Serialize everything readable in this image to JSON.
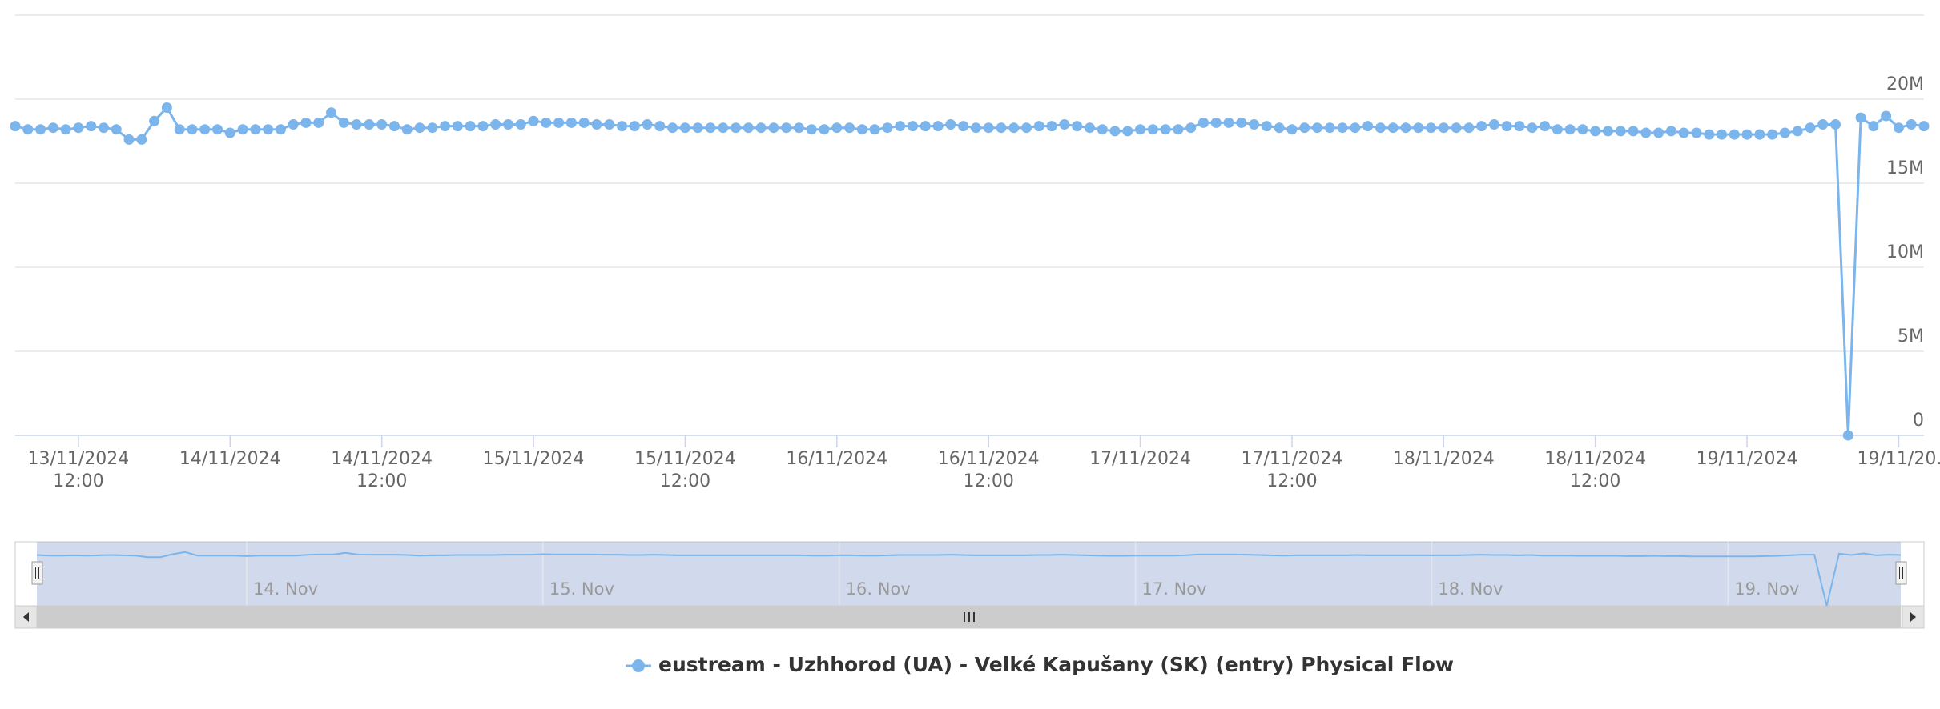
{
  "chart_data": {
    "type": "line",
    "x": [
      "2024-11-13 07:00",
      "2024-11-13 08:00",
      "2024-11-13 09:00",
      "2024-11-13 10:00",
      "2024-11-13 11:00",
      "2024-11-13 12:00",
      "2024-11-13 13:00",
      "2024-11-13 14:00",
      "2024-11-13 15:00",
      "2024-11-13 16:00",
      "2024-11-13 17:00",
      "2024-11-13 18:00",
      "2024-11-13 19:00",
      "2024-11-13 20:00",
      "2024-11-13 21:00",
      "2024-11-13 22:00",
      "2024-11-13 23:00",
      "2024-11-14 00:00",
      "2024-11-14 01:00",
      "2024-11-14 02:00",
      "2024-11-14 03:00",
      "2024-11-14 04:00",
      "2024-11-14 05:00",
      "2024-11-14 06:00",
      "2024-11-14 07:00",
      "2024-11-14 08:00",
      "2024-11-14 09:00",
      "2024-11-14 10:00",
      "2024-11-14 11:00",
      "2024-11-14 12:00",
      "2024-11-14 13:00",
      "2024-11-14 14:00",
      "2024-11-14 15:00",
      "2024-11-14 16:00",
      "2024-11-14 17:00",
      "2024-11-14 18:00",
      "2024-11-14 19:00",
      "2024-11-14 20:00",
      "2024-11-14 21:00",
      "2024-11-14 22:00",
      "2024-11-14 23:00",
      "2024-11-15 00:00",
      "2024-11-15 01:00",
      "2024-11-15 02:00",
      "2024-11-15 03:00",
      "2024-11-15 04:00",
      "2024-11-15 05:00",
      "2024-11-15 06:00",
      "2024-11-15 07:00",
      "2024-11-15 08:00",
      "2024-11-15 09:00",
      "2024-11-15 10:00",
      "2024-11-15 11:00",
      "2024-11-15 12:00",
      "2024-11-15 13:00",
      "2024-11-15 14:00",
      "2024-11-15 15:00",
      "2024-11-15 16:00",
      "2024-11-15 17:00",
      "2024-11-15 18:00",
      "2024-11-15 19:00",
      "2024-11-15 20:00",
      "2024-11-15 21:00",
      "2024-11-15 22:00",
      "2024-11-15 23:00",
      "2024-11-16 00:00",
      "2024-11-16 01:00",
      "2024-11-16 02:00",
      "2024-11-16 03:00",
      "2024-11-16 04:00",
      "2024-11-16 05:00",
      "2024-11-16 06:00",
      "2024-11-16 07:00",
      "2024-11-16 08:00",
      "2024-11-16 09:00",
      "2024-11-16 10:00",
      "2024-11-16 11:00",
      "2024-11-16 12:00",
      "2024-11-16 13:00",
      "2024-11-16 14:00",
      "2024-11-16 15:00",
      "2024-11-16 16:00",
      "2024-11-16 17:00",
      "2024-11-16 18:00",
      "2024-11-16 19:00",
      "2024-11-16 20:00",
      "2024-11-16 21:00",
      "2024-11-16 22:00",
      "2024-11-16 23:00",
      "2024-11-17 00:00",
      "2024-11-17 01:00",
      "2024-11-17 02:00",
      "2024-11-17 03:00",
      "2024-11-17 04:00",
      "2024-11-17 05:00",
      "2024-11-17 06:00",
      "2024-11-17 07:00",
      "2024-11-17 08:00",
      "2024-11-17 09:00",
      "2024-11-17 10:00",
      "2024-11-17 11:00",
      "2024-11-17 12:00",
      "2024-11-17 13:00",
      "2024-11-17 14:00",
      "2024-11-17 15:00",
      "2024-11-17 16:00",
      "2024-11-17 17:00",
      "2024-11-17 18:00",
      "2024-11-17 19:00",
      "2024-11-17 20:00",
      "2024-11-17 21:00",
      "2024-11-17 22:00",
      "2024-11-17 23:00",
      "2024-11-18 00:00",
      "2024-11-18 01:00",
      "2024-11-18 02:00",
      "2024-11-18 03:00",
      "2024-11-18 04:00",
      "2024-11-18 05:00",
      "2024-11-18 06:00",
      "2024-11-18 07:00",
      "2024-11-18 08:00",
      "2024-11-18 09:00",
      "2024-11-18 10:00",
      "2024-11-18 11:00",
      "2024-11-18 12:00",
      "2024-11-18 13:00",
      "2024-11-18 14:00",
      "2024-11-18 15:00",
      "2024-11-18 16:00",
      "2024-11-18 17:00",
      "2024-11-18 18:00",
      "2024-11-18 19:00",
      "2024-11-18 20:00",
      "2024-11-18 21:00",
      "2024-11-18 22:00",
      "2024-11-18 23:00",
      "2024-11-19 00:00",
      "2024-11-19 01:00",
      "2024-11-19 02:00",
      "2024-11-19 03:00",
      "2024-11-19 04:00",
      "2024-11-19 05:00",
      "2024-11-19 06:00",
      "2024-11-19 07:00",
      "2024-11-19 08:00",
      "2024-11-19 09:00",
      "2024-11-19 10:00",
      "2024-11-19 11:00",
      "2024-11-19 12:00",
      "2024-11-19 13:00",
      "2024-11-19 14:00"
    ],
    "series": [
      {
        "name": "eustream - Uzhhorod (UA) - Velké Kapušany (SK) (entry) Physical Flow",
        "color": "#7cb5ec",
        "values": [
          18400000,
          18200000,
          18200000,
          18300000,
          18200000,
          18300000,
          18400000,
          18300000,
          18200000,
          17600000,
          17600000,
          18700000,
          19500000,
          18200000,
          18200000,
          18200000,
          18200000,
          18000000,
          18200000,
          18200000,
          18200000,
          18200000,
          18500000,
          18600000,
          18600000,
          19200000,
          18600000,
          18500000,
          18500000,
          18500000,
          18400000,
          18200000,
          18300000,
          18300000,
          18400000,
          18400000,
          18400000,
          18400000,
          18500000,
          18500000,
          18500000,
          18700000,
          18600000,
          18600000,
          18600000,
          18600000,
          18500000,
          18500000,
          18400000,
          18400000,
          18500000,
          18400000,
          18300000,
          18300000,
          18300000,
          18300000,
          18300000,
          18300000,
          18300000,
          18300000,
          18300000,
          18300000,
          18300000,
          18200000,
          18200000,
          18300000,
          18300000,
          18200000,
          18200000,
          18300000,
          18400000,
          18400000,
          18400000,
          18400000,
          18500000,
          18400000,
          18300000,
          18300000,
          18300000,
          18300000,
          18300000,
          18400000,
          18400000,
          18500000,
          18400000,
          18300000,
          18200000,
          18100000,
          18100000,
          18200000,
          18200000,
          18200000,
          18200000,
          18300000,
          18600000,
          18600000,
          18600000,
          18600000,
          18500000,
          18400000,
          18300000,
          18200000,
          18300000,
          18300000,
          18300000,
          18300000,
          18300000,
          18400000,
          18300000,
          18300000,
          18300000,
          18300000,
          18300000,
          18300000,
          18300000,
          18300000,
          18400000,
          18500000,
          18400000,
          18400000,
          18300000,
          18400000,
          18200000,
          18200000,
          18200000,
          18100000,
          18100000,
          18100000,
          18100000,
          18000000,
          18000000,
          18100000,
          18000000,
          18000000,
          17900000,
          17900000,
          17900000,
          17900000,
          17900000,
          17900000,
          18000000,
          18100000,
          18300000,
          18500000,
          18500000,
          0,
          18900000,
          18400000,
          19000000,
          18300000,
          18500000,
          18400000
        ]
      }
    ],
    "xlim": [
      "2024-11-13 07:00",
      "2024-11-19 14:00"
    ],
    "xticks": [
      {
        "value": "2024-11-13 12:00",
        "label": "13/11/2024 12:00"
      },
      {
        "value": "2024-11-14 00:00",
        "label": "14/11/2024"
      },
      {
        "value": "2024-11-14 12:00",
        "label": "14/11/2024 12:00"
      },
      {
        "value": "2024-11-15 00:00",
        "label": "15/11/2024"
      },
      {
        "value": "2024-11-15 12:00",
        "label": "15/11/2024 12:00"
      },
      {
        "value": "2024-11-16 00:00",
        "label": "16/11/2024"
      },
      {
        "value": "2024-11-16 12:00",
        "label": "16/11/2024 12:00"
      },
      {
        "value": "2024-11-17 00:00",
        "label": "17/11/2024"
      },
      {
        "value": "2024-11-17 12:00",
        "label": "17/11/2024 12:00"
      },
      {
        "value": "2024-11-18 00:00",
        "label": "18/11/2024"
      },
      {
        "value": "2024-11-18 12:00",
        "label": "18/11/2024 12:00"
      },
      {
        "value": "2024-11-19 00:00",
        "label": "19/11/2024"
      },
      {
        "value": "2024-11-19 12:00",
        "label": "19/11/20..."
      }
    ],
    "ylim": [
      0,
      25000000
    ],
    "yticks": [
      0,
      {
        "value": 5000000,
        "label": "5M"
      },
      {
        "value": 10000000,
        "label": "10M"
      },
      {
        "value": 15000000,
        "label": "15M"
      },
      {
        "value": 20000000,
        "label": "20M"
      }
    ],
    "grid": true,
    "navigator_ticks": [
      {
        "value": "2024-11-14 00:00",
        "label": "14. Nov"
      },
      {
        "value": "2024-11-15 00:00",
        "label": "15. Nov"
      },
      {
        "value": "2024-11-16 00:00",
        "label": "16. Nov"
      },
      {
        "value": "2024-11-17 00:00",
        "label": "17. Nov"
      },
      {
        "value": "2024-11-18 00:00",
        "label": "18. Nov"
      },
      {
        "value": "2024-11-19 00:00",
        "label": "19. Nov"
      }
    ]
  }
}
